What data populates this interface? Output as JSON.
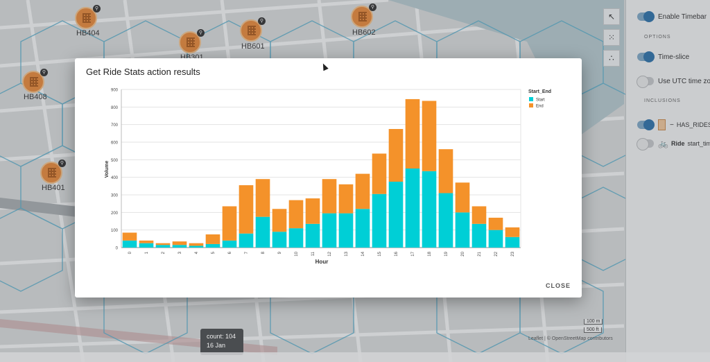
{
  "map": {
    "hubs": [
      {
        "label": "HB404"
      },
      {
        "label": "HB301"
      },
      {
        "label": "HB601"
      },
      {
        "label": "HB602"
      },
      {
        "label": "HB408"
      },
      {
        "label": "HB401"
      }
    ],
    "scale_m": "100 m",
    "scale_ft": "500 ft",
    "attribution": "Leaflet | © OpenStreetMap contributors",
    "tooltip": {
      "count": "count: 104",
      "date": "16 Jan"
    }
  },
  "toolbar": {
    "tools": [
      {
        "icon": "pointer-icon"
      },
      {
        "icon": "grid-select-icon"
      },
      {
        "icon": "scatter-icon"
      }
    ]
  },
  "side_panel": {
    "enable_timebar": "Enable Timebar",
    "options_heading": "OPTIONS",
    "time_slice": "Time-slice",
    "use_utc": "Use UTC time zo",
    "inclusions_heading": "INCLUSIONS",
    "has_rides": "HAS_RIDES",
    "ride_label": "Ride",
    "start_time": "start_tim"
  },
  "dialog": {
    "title": "Get Ride Stats action results",
    "close_label": "CLOSE"
  },
  "chart_data": {
    "type": "bar",
    "stacked": true,
    "title": "",
    "xlabel": "Hour",
    "ylabel": "Volume",
    "ylim": [
      0,
      900
    ],
    "yticks": [
      0,
      100,
      200,
      300,
      400,
      500,
      600,
      700,
      800,
      900
    ],
    "grid": true,
    "legend_title": "Start_End",
    "legend_position": "right",
    "categories": [
      "0",
      "1",
      "2",
      "3",
      "4",
      "5",
      "6",
      "7",
      "8",
      "9",
      "10",
      "11",
      "12",
      "13",
      "14",
      "15",
      "16",
      "17",
      "18",
      "19",
      "20",
      "21",
      "22",
      "23"
    ],
    "series": [
      {
        "name": "Start",
        "color": "#00cfd6",
        "values": [
          40,
          25,
          15,
          15,
          10,
          20,
          40,
          80,
          175,
          90,
          110,
          135,
          195,
          195,
          220,
          305,
          375,
          450,
          435,
          310,
          200,
          135,
          100,
          60
        ]
      },
      {
        "name": "End",
        "color": "#f4922a",
        "values": [
          45,
          15,
          10,
          20,
          15,
          55,
          195,
          275,
          215,
          130,
          160,
          145,
          195,
          165,
          200,
          230,
          300,
          395,
          400,
          250,
          170,
          100,
          70,
          55
        ]
      }
    ]
  }
}
